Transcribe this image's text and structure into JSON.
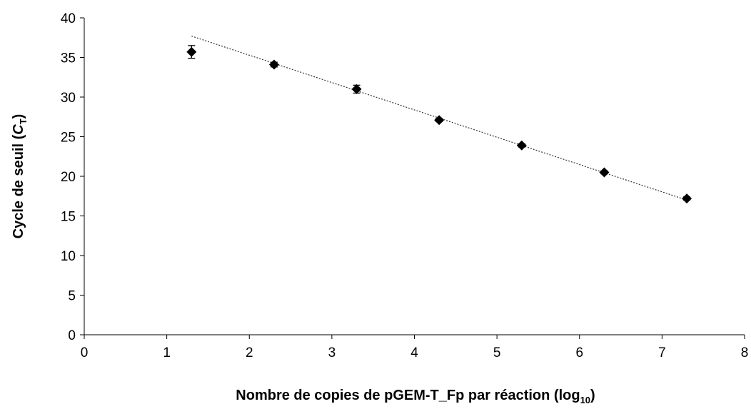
{
  "chart_data": {
    "type": "scatter",
    "xlabel_main": "Nombre de copies de pGEM-T_Fp par réaction (log",
    "xlabel_sub": "10",
    "xlabel_end": ")",
    "ylabel_main": "Cycle de seuil (",
    "ylabel_var": "C",
    "ylabel_sub": "T",
    "ylabel_end": ")",
    "xlim": [
      0,
      8
    ],
    "ylim": [
      0,
      40
    ],
    "xticks": [
      0,
      1,
      2,
      3,
      4,
      5,
      6,
      7,
      8
    ],
    "yticks": [
      0,
      5,
      10,
      15,
      20,
      25,
      30,
      35,
      40
    ],
    "grid": false,
    "legend": "none",
    "points": [
      {
        "x": 1.3,
        "y": 35.7,
        "err": 0.8
      },
      {
        "x": 2.3,
        "y": 34.1,
        "err": 0.3
      },
      {
        "x": 3.3,
        "y": 31.0,
        "err": 0.5
      },
      {
        "x": 4.3,
        "y": 27.1,
        "err": 0.2
      },
      {
        "x": 5.3,
        "y": 23.9,
        "err": 0.2
      },
      {
        "x": 6.3,
        "y": 20.5,
        "err": 0.2
      },
      {
        "x": 7.3,
        "y": 17.2,
        "err": 0.2
      }
    ],
    "trendline": {
      "x": [
        1.3,
        7.3
      ],
      "y": [
        37.7,
        17.0
      ]
    },
    "colors": {
      "marker": "#000000",
      "axis": "#000000",
      "trendline": "#333333"
    }
  }
}
